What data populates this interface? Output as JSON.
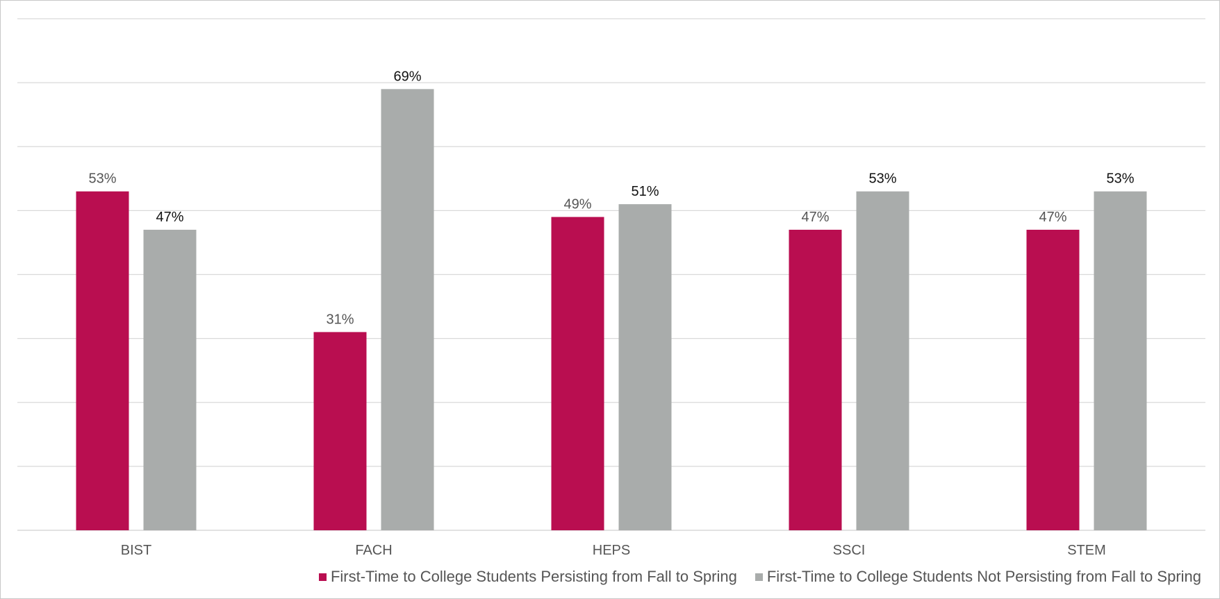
{
  "chart_data": {
    "type": "bar",
    "categories": [
      "BIST",
      "FACH",
      "HEPS",
      "SSCI",
      "STEM"
    ],
    "series": [
      {
        "name": "First-Time to College Students Persisting from Fall to Spring",
        "color": "#B90E50",
        "values": [
          53,
          31,
          49,
          47,
          47
        ],
        "labels": [
          "53%",
          "31%",
          "49%",
          "47%",
          "47%"
        ]
      },
      {
        "name": "First-Time to College Students Not Persisting from Fall to Spring",
        "color": "#A9ACAB",
        "values": [
          47,
          69,
          51,
          53,
          53
        ],
        "labels": [
          "47%",
          "69%",
          "51%",
          "53%",
          "53%"
        ]
      }
    ],
    "ylim": [
      0,
      80
    ],
    "y_gridlines": true,
    "y_tick_labels_shown": false,
    "legend_position": "bottom",
    "title": "",
    "xlabel": "",
    "ylabel": ""
  }
}
